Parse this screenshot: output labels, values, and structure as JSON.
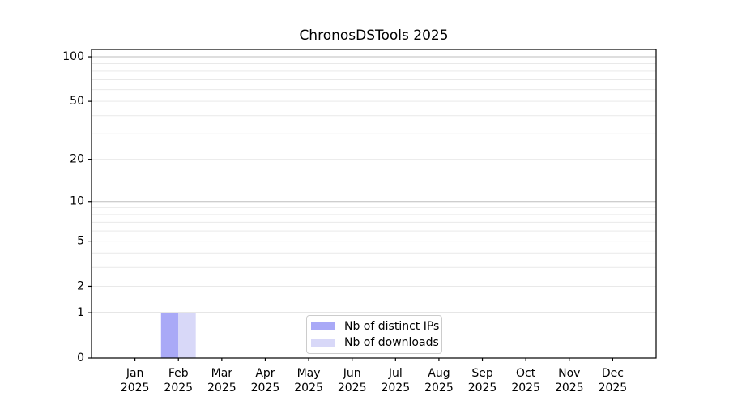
{
  "title": "ChronosDSTools 2025",
  "colors": {
    "axis": "#000000",
    "text": "#000000",
    "grid_major": "#bdbdbd",
    "grid_minor": "#e9e9e9",
    "background": "#ffffff",
    "legend_border": "#cccccc",
    "series_distinct_ips": "#a9a9f7",
    "series_downloads": "#d8d8f8"
  },
  "chart_data": {
    "type": "bar",
    "title": "ChronosDSTools 2025",
    "x_categories": [
      "Jan 2025",
      "Feb 2025",
      "Mar 2025",
      "Apr 2025",
      "May 2025",
      "Jun 2025",
      "Jul 2025",
      "Aug 2025",
      "Sep 2025",
      "Oct 2025",
      "Nov 2025",
      "Dec 2025"
    ],
    "y_scale": "log1p",
    "ylim": [
      0,
      112
    ],
    "y_ticks": [
      0,
      1,
      2,
      5,
      10,
      20,
      50,
      100
    ],
    "y_gridlines_major": [
      1,
      10,
      100
    ],
    "y_gridlines_minor": [
      2,
      3,
      4,
      5,
      6,
      7,
      8,
      9,
      20,
      30,
      40,
      50,
      60,
      70,
      80,
      90
    ],
    "bar_width_fraction": 0.4,
    "grid": true,
    "legend_position": "lower center",
    "series": [
      {
        "name": "Nb of distinct IPs",
        "color": "#a9a9f7",
        "values": [
          0,
          1,
          0,
          0,
          0,
          0,
          0,
          0,
          0,
          0,
          0,
          0
        ]
      },
      {
        "name": "Nb of downloads",
        "color": "#d8d8f8",
        "values": [
          0,
          1,
          0,
          0,
          0,
          0,
          0,
          0,
          0,
          0,
          0,
          0
        ]
      }
    ]
  }
}
